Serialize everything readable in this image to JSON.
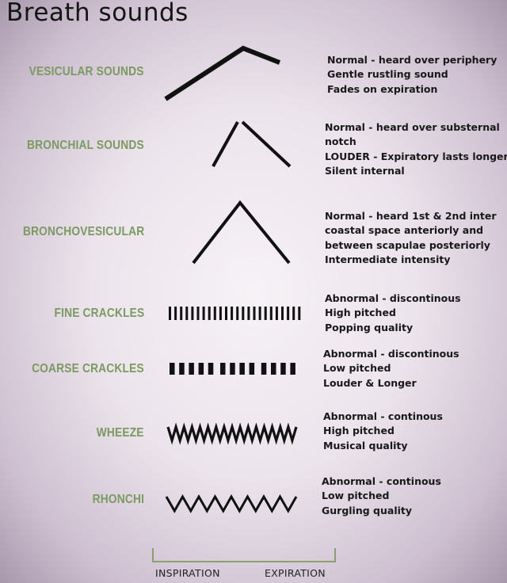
{
  "title": "Breath sounds",
  "colors": {
    "label": "#7a9a62",
    "text": "#181818",
    "bracket": "#8aa070"
  },
  "sounds": [
    {
      "name": "VESICULAR SOUNDS",
      "pattern": "vesicular",
      "lines": [
        "Normal - heard over periphery",
        "Gentle rustling sound",
        "Fades on expiration"
      ]
    },
    {
      "name": "BRONCHIAL SOUNDS",
      "pattern": "bronchial",
      "lines": [
        "Normal - heard over substernal",
        "notch",
        "LOUDER - Expiratory lasts longer",
        "Silent internal"
      ]
    },
    {
      "name": "BRONCHOVESICULAR",
      "pattern": "bronchovesicular",
      "lines": [
        "Normal - heard 1st & 2nd inter",
        "coastal space anteriorly and",
        "between scapulae posteriorly",
        "Intermediate intensity"
      ]
    },
    {
      "name": "FINE CRACKLES",
      "pattern": "fine-crackles",
      "lines": [
        "Abnormal - discontinous",
        "High pitched",
        "Popping quality"
      ]
    },
    {
      "name": "COARSE CRACKLES",
      "pattern": "coarse-crackles",
      "lines": [
        "Abnormal - discontinous",
        "Low pitched",
        "Louder & Longer"
      ]
    },
    {
      "name": "WHEEZE",
      "pattern": "wheeze",
      "lines": [
        "Abnormal - continous",
        "High pitched",
        "Musical quality"
      ]
    },
    {
      "name": "RHONCHI",
      "pattern": "rhonchi",
      "lines": [
        "Abnormal - continous",
        "Low pitched",
        "Gurgling quality"
      ]
    }
  ],
  "axis": {
    "inspiration": "INSPIRATION",
    "expiration": "EXPIRATION"
  }
}
